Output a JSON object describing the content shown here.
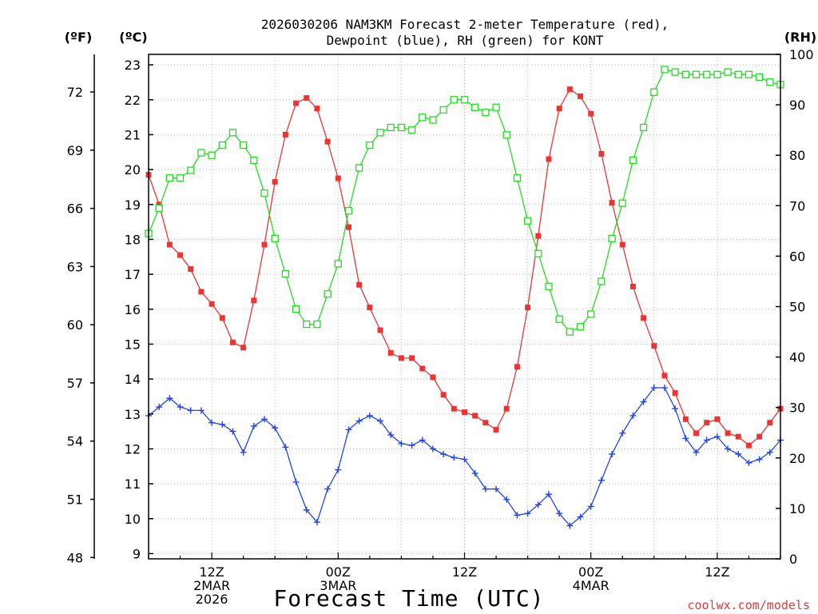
{
  "chart_data": {
    "type": "line",
    "title_line1": "2026030206 NAM3KM Forecast 2-meter Temperature (red),",
    "title_line2": "Dewpoint (blue), RH (green) for KONT",
    "xlabel": "Forecast Time (UTC)",
    "credit": "coolwx.com/models",
    "left_unit_f": "(ºF)",
    "left_unit_c": "(ºC)",
    "right_unit": "(RH)",
    "grid": true,
    "x_range_hours": [
      6,
      66
    ],
    "celsius_range": [
      8.85,
      23.3
    ],
    "rh_range": [
      0,
      100
    ],
    "fahrenheit_ticks": [
      "48",
      "51",
      "54",
      "57",
      "60",
      "63",
      "66",
      "69",
      "72"
    ],
    "celsius_ticks": [
      "9",
      "10",
      "11",
      "12",
      "13",
      "14",
      "15",
      "16",
      "17",
      "18",
      "19",
      "20",
      "21",
      "22",
      "23"
    ],
    "rh_ticks": [
      "0",
      "10",
      "20",
      "30",
      "40",
      "50",
      "60",
      "70",
      "80",
      "90",
      "100"
    ],
    "x_ticks": [
      {
        "hour": 12,
        "lines": [
          "12Z",
          "2MAR",
          "2026"
        ]
      },
      {
        "hour": 24,
        "lines": [
          "00Z",
          "3MAR"
        ]
      },
      {
        "hour": 36,
        "lines": [
          "12Z"
        ]
      },
      {
        "hour": 48,
        "lines": [
          "00Z",
          "4MAR"
        ]
      },
      {
        "hour": 60,
        "lines": [
          "12Z"
        ]
      }
    ],
    "series": [
      {
        "name": "2-meter Temperature",
        "units": "C",
        "color": "#ee3333",
        "marker": "filled-square",
        "values": [
          19.85,
          19.0,
          17.85,
          17.55,
          17.15,
          16.5,
          16.15,
          15.75,
          15.05,
          14.9,
          16.25,
          17.85,
          19.65,
          21.0,
          21.9,
          22.05,
          21.75,
          20.8,
          19.75,
          18.35,
          16.7,
          16.05,
          15.4,
          14.75,
          14.6,
          14.6,
          14.3,
          14.05,
          13.55,
          13.15,
          13.05,
          12.95,
          12.75,
          12.55,
          13.15,
          14.35,
          16.05,
          18.1,
          20.3,
          21.75,
          22.3,
          22.1,
          21.6,
          20.45,
          19.05,
          17.85,
          16.65,
          15.75,
          14.95,
          14.1,
          13.6,
          12.85,
          12.45,
          12.75,
          12.85,
          12.45,
          12.35,
          12.1,
          12.35,
          12.75,
          13.15
        ]
      },
      {
        "name": "Dewpoint",
        "units": "C",
        "color": "#2244ee",
        "marker": "plus",
        "values": [
          12.95,
          13.2,
          13.45,
          13.2,
          13.1,
          13.1,
          12.75,
          12.7,
          12.5,
          11.9,
          12.65,
          12.85,
          12.6,
          12.05,
          11.05,
          10.25,
          9.9,
          10.85,
          11.4,
          12.55,
          12.8,
          12.95,
          12.8,
          12.4,
          12.15,
          12.1,
          12.25,
          12.0,
          11.85,
          11.75,
          11.7,
          11.3,
          10.85,
          10.85,
          10.55,
          10.1,
          10.15,
          10.4,
          10.7,
          10.15,
          9.8,
          10.05,
          10.35,
          11.1,
          11.85,
          12.45,
          12.95,
          13.35,
          13.75,
          13.75,
          13.15,
          12.3,
          11.9,
          12.25,
          12.35,
          12.0,
          11.85,
          11.6,
          11.7,
          11.9,
          12.25
        ]
      },
      {
        "name": "Relative Humidity",
        "units": "RH%",
        "color": "#22dd22",
        "marker": "open-square",
        "values": [
          64.5,
          69.5,
          75.5,
          75.5,
          77,
          80.5,
          80,
          82,
          84.5,
          82,
          79,
          72.5,
          63.5,
          56.5,
          49.5,
          46.5,
          46.5,
          52.5,
          58.5,
          69,
          77.5,
          82,
          84.5,
          85.5,
          85.5,
          85,
          87.5,
          87,
          89,
          91,
          91,
          89.5,
          88.5,
          89.5,
          84,
          75.5,
          67,
          60.5,
          54,
          47.5,
          45,
          46,
          48.5,
          55,
          63.5,
          70.5,
          79,
          85.5,
          92.5,
          97,
          96.5,
          96,
          96,
          96,
          96,
          96.5,
          96,
          96,
          95.5,
          94.5,
          94
        ]
      }
    ]
  }
}
